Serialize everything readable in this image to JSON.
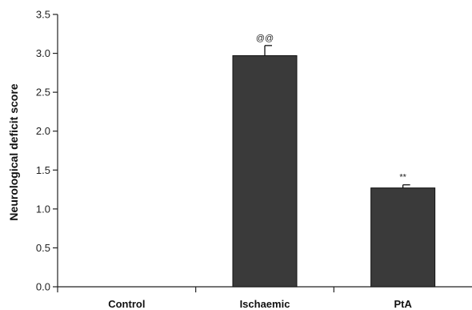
{
  "chart_data": {
    "type": "bar",
    "title": "",
    "xlabel": "",
    "ylabel": "Neurological deficit score",
    "categories": [
      "Control",
      "Ischaemic",
      "PtA"
    ],
    "values": [
      0,
      2.97,
      1.27
    ],
    "errors": [
      0,
      0.13,
      0.04
    ],
    "annotations": [
      "",
      "@@",
      "**"
    ],
    "ylim": [
      0,
      3.5
    ],
    "yticks": [
      "0.0",
      "0.5",
      "1.0",
      "1.5",
      "2.0",
      "2.5",
      "3.0",
      "3.5"
    ],
    "bar_color": "#3a3a3a",
    "grid": false,
    "legend": "none"
  }
}
